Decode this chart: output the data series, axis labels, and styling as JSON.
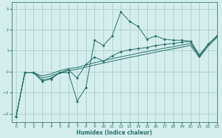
{
  "title": "",
  "xlabel": "Humidex (Indice chaleur)",
  "ylabel": "",
  "xlim": [
    -0.5,
    23
  ],
  "ylim": [
    -2.4,
    3.3
  ],
  "yticks": [
    -2,
    -1,
    0,
    1,
    2,
    3
  ],
  "xticks": [
    0,
    1,
    2,
    3,
    4,
    5,
    6,
    7,
    8,
    9,
    10,
    11,
    12,
    13,
    14,
    15,
    16,
    17,
    18,
    19,
    20,
    21,
    22,
    23
  ],
  "bg_color": "#d4eeed",
  "grid_color": "#a8cccb",
  "line_color": "#2a7068",
  "line1_x": [
    0,
    1,
    2,
    3,
    4,
    5,
    6,
    7,
    8,
    9,
    10,
    11,
    12,
    13,
    14,
    15,
    16,
    17,
    18,
    19,
    20,
    21,
    22,
    23
  ],
  "line1_y": [
    -2.15,
    -0.05,
    -0.05,
    -0.45,
    -0.35,
    -0.05,
    -0.05,
    -1.4,
    -0.75,
    1.5,
    1.25,
    1.7,
    2.85,
    2.4,
    2.15,
    1.55,
    1.7,
    1.55,
    1.5,
    1.5,
    1.45,
    0.75,
    1.3,
    1.7
  ],
  "line2_x": [
    0,
    1,
    2,
    3,
    4,
    5,
    6,
    7,
    8,
    9,
    10,
    11,
    12,
    13,
    14,
    15,
    16,
    17,
    18,
    19,
    20,
    21,
    22,
    23
  ],
  "line2_y": [
    -2.15,
    -0.05,
    -0.05,
    -0.4,
    -0.3,
    -0.05,
    0.1,
    -0.3,
    0.35,
    0.7,
    0.5,
    0.75,
    0.95,
    1.05,
    1.1,
    1.15,
    1.25,
    1.3,
    1.35,
    1.4,
    1.45,
    0.8,
    1.3,
    1.7
  ],
  "line3_x": [
    0,
    1,
    2,
    3,
    4,
    5,
    6,
    7,
    8,
    9,
    10,
    11,
    12,
    13,
    14,
    15,
    16,
    17,
    18,
    19,
    20,
    21,
    22,
    23
  ],
  "line3_y": [
    -2.15,
    -0.05,
    -0.05,
    -0.2,
    -0.1,
    0.05,
    0.15,
    0.2,
    0.32,
    0.43,
    0.52,
    0.62,
    0.71,
    0.79,
    0.88,
    0.96,
    1.04,
    1.12,
    1.19,
    1.27,
    1.34,
    0.75,
    1.28,
    1.68
  ],
  "line4_x": [
    0,
    1,
    2,
    3,
    4,
    5,
    6,
    7,
    8,
    9,
    10,
    11,
    12,
    13,
    14,
    15,
    16,
    17,
    18,
    19,
    20,
    21,
    22,
    23
  ],
  "line4_y": [
    -2.15,
    -0.05,
    -0.05,
    -0.3,
    -0.2,
    -0.05,
    0.05,
    0.12,
    0.22,
    0.32,
    0.41,
    0.5,
    0.59,
    0.68,
    0.76,
    0.85,
    0.93,
    1.01,
    1.09,
    1.17,
    1.25,
    0.67,
    1.21,
    1.62
  ]
}
